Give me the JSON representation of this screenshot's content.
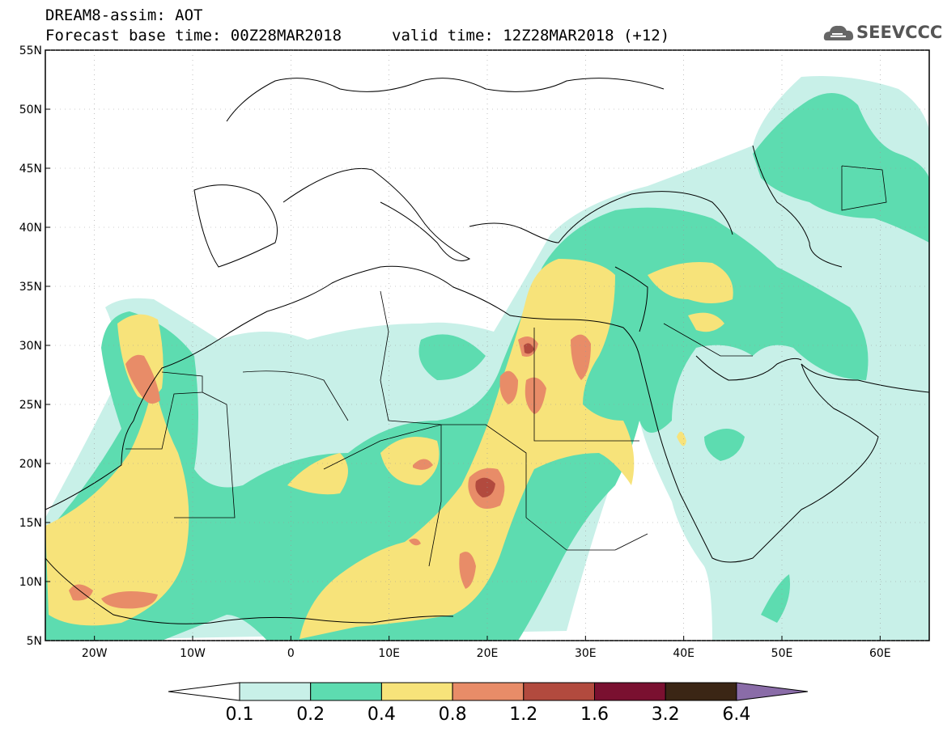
{
  "header": {
    "title": "DREAM8-assim: AOT",
    "base_time": "Forecast base time: 00Z28MAR2018",
    "valid_time": "valid time: 12Z28MAR2018 (+12)"
  },
  "logo": {
    "text": "SEEVCCC",
    "icon": "cloud-icon"
  },
  "map": {
    "lon_range": [
      -25,
      65
    ],
    "lat_range": [
      5,
      55
    ],
    "lat_labels": [
      "5N",
      "10N",
      "15N",
      "20N",
      "25N",
      "30N",
      "35N",
      "40N",
      "45N",
      "50N",
      "55N"
    ],
    "lon_labels": [
      "20W",
      "10W",
      "0",
      "10E",
      "20E",
      "30E",
      "40E",
      "50E",
      "60E"
    ]
  },
  "colorbar": {
    "labels": [
      "0.1",
      "0.2",
      "0.4",
      "0.8",
      "1.2",
      "1.6",
      "3.2",
      "6.4"
    ],
    "colors": [
      "#ffffff",
      "#c8f0e8",
      "#5ddcb0",
      "#f7e37a",
      "#e88c68",
      "#b24a3e",
      "#7a1030",
      "#3b2615",
      "#8a6ca8"
    ]
  }
}
